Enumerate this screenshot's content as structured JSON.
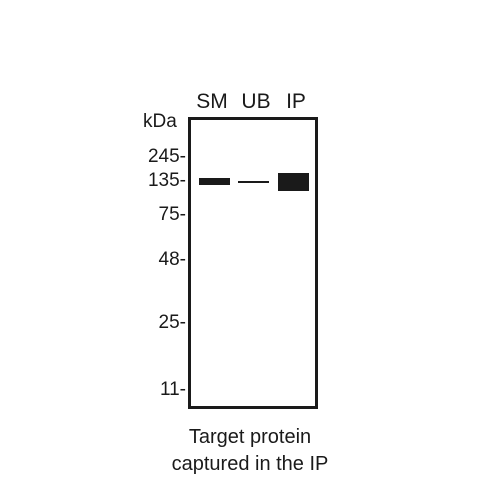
{
  "figure": {
    "lane_labels": [
      "SM",
      "UB",
      "IP"
    ],
    "unit": "kDa",
    "markers": [
      "245-",
      "135-",
      "75-",
      "48-",
      "25-",
      "11-"
    ],
    "caption_lines": [
      "Target protein",
      "captured in the IP"
    ]
  }
}
